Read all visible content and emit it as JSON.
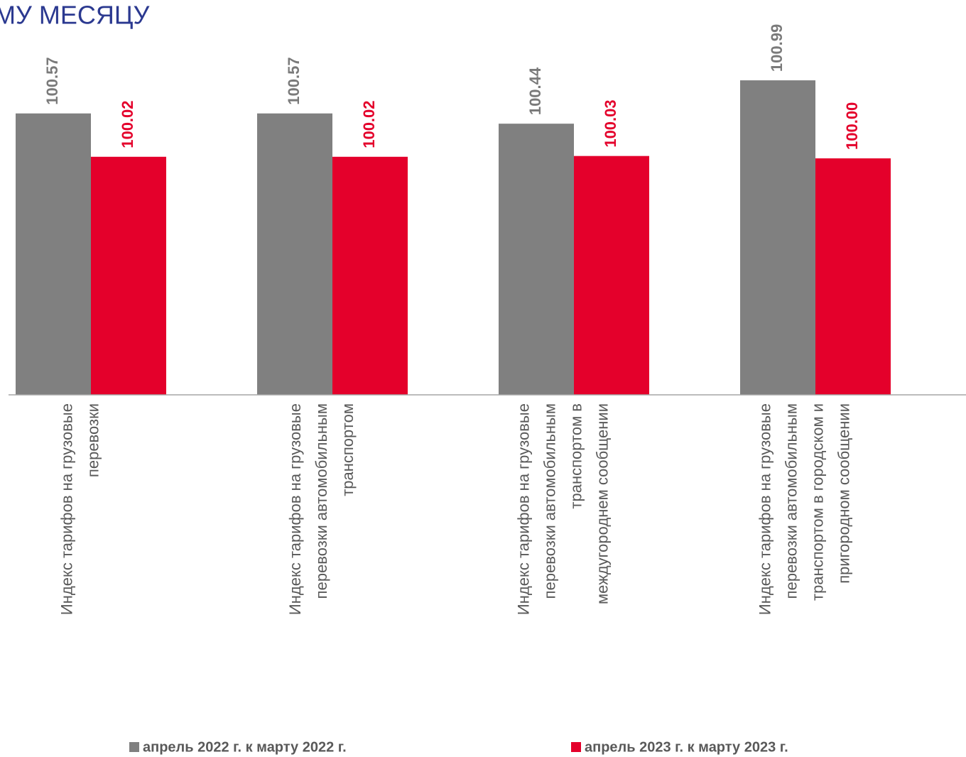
{
  "chart_data": {
    "type": "bar",
    "title": "МУ МЕСЯЦУ",
    "categories": [
      [
        "Индекс тарифов на грузовые",
        "перевозки"
      ],
      [
        "Индекс тарифов на грузовые",
        "перевозки автомобильным",
        "транспортом"
      ],
      [
        "Индекс тарифов на грузовые",
        "перевозки автомобильным",
        "транспортом в",
        "междугороднем сообщении"
      ],
      [
        "Индекс тарифов на грузовые",
        "перевозки автомобильным",
        "транспортом в городском и",
        "пригородном сообщении"
      ]
    ],
    "series": [
      {
        "name": "апрель 2022 г. к марту 2022 г.",
        "color": "#808080",
        "label_color": "#7a7a7a",
        "values": [
          100.57,
          100.57,
          100.44,
          100.99
        ],
        "value_labels": [
          "100.57",
          "100.57",
          "100.44",
          "100.99"
        ]
      },
      {
        "name": "апрель 2023 г. к марту 2023 г.",
        "color": "#e4002b",
        "label_color": "#e4002b",
        "values": [
          100.02,
          100.02,
          100.03,
          100.0
        ],
        "value_labels": [
          "100.02",
          "100.02",
          "100.03",
          "100.00"
        ]
      }
    ],
    "ylim": [
      97,
      101
    ],
    "legend": "bottom"
  }
}
